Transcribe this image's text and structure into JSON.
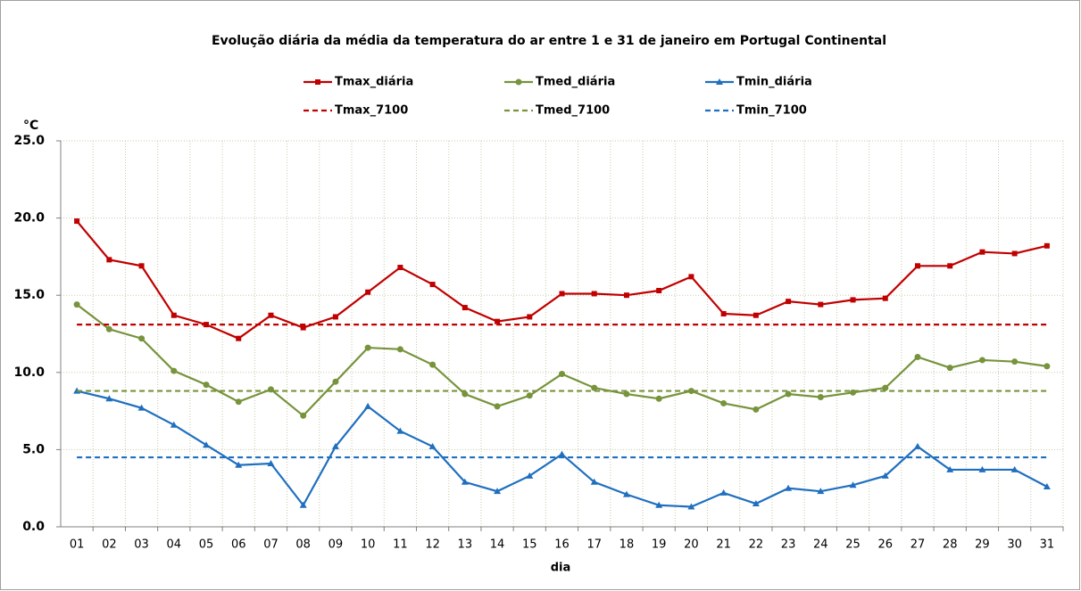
{
  "chart_data": {
    "type": "line",
    "title": "Evolução diária da média da temperatura do ar entre 1 e 31 de janeiro em Portugal Continental",
    "ylabel": "°C",
    "xlabel": "dia",
    "categories": [
      "01",
      "02",
      "03",
      "04",
      "05",
      "06",
      "07",
      "08",
      "09",
      "10",
      "11",
      "12",
      "13",
      "14",
      "15",
      "16",
      "17",
      "18",
      "19",
      "20",
      "21",
      "22",
      "23",
      "24",
      "25",
      "26",
      "27",
      "28",
      "29",
      "30",
      "31"
    ],
    "series": [
      {
        "name": "Tmax_diária",
        "color": "#c00000",
        "marker": "square",
        "dashed": false,
        "values": [
          19.8,
          17.3,
          16.9,
          13.7,
          13.1,
          12.2,
          13.7,
          12.9,
          13.6,
          15.2,
          16.8,
          15.7,
          14.2,
          13.3,
          13.6,
          15.1,
          15.1,
          15.0,
          15.3,
          16.2,
          13.8,
          13.7,
          14.6,
          14.4,
          14.7,
          14.8,
          16.9,
          16.9,
          17.8,
          17.7,
          18.2
        ]
      },
      {
        "name": "Tmed_diária",
        "color": "#77933c",
        "marker": "circle",
        "dashed": false,
        "values": [
          14.4,
          12.8,
          12.2,
          10.1,
          9.2,
          8.1,
          8.9,
          7.2,
          9.4,
          11.6,
          11.5,
          10.5,
          8.6,
          7.8,
          8.5,
          9.9,
          9.0,
          8.6,
          8.3,
          8.8,
          8.0,
          7.6,
          8.6,
          8.4,
          8.7,
          9.0,
          11.0,
          10.3,
          10.8,
          10.7,
          10.4
        ]
      },
      {
        "name": "Tmin_diária",
        "color": "#1f6fbf",
        "marker": "triangle",
        "dashed": false,
        "values": [
          8.8,
          8.3,
          7.7,
          6.6,
          5.3,
          4.0,
          4.1,
          1.4,
          5.2,
          7.8,
          6.2,
          5.2,
          2.9,
          2.3,
          3.3,
          4.7,
          2.9,
          2.1,
          1.4,
          1.3,
          2.2,
          1.5,
          2.5,
          2.3,
          2.7,
          3.3,
          5.2,
          3.7,
          3.7,
          3.7,
          2.6
        ]
      },
      {
        "name": "Tmax_7100",
        "color": "#c00000",
        "marker": "none",
        "dashed": true,
        "values": [
          13.1,
          13.1,
          13.1,
          13.1,
          13.1,
          13.1,
          13.1,
          13.1,
          13.1,
          13.1,
          13.1,
          13.1,
          13.1,
          13.1,
          13.1,
          13.1,
          13.1,
          13.1,
          13.1,
          13.1,
          13.1,
          13.1,
          13.1,
          13.1,
          13.1,
          13.1,
          13.1,
          13.1,
          13.1,
          13.1,
          13.1
        ]
      },
      {
        "name": "Tmed_7100",
        "color": "#77933c",
        "marker": "none",
        "dashed": true,
        "values": [
          8.8,
          8.8,
          8.8,
          8.8,
          8.8,
          8.8,
          8.8,
          8.8,
          8.8,
          8.8,
          8.8,
          8.8,
          8.8,
          8.8,
          8.8,
          8.8,
          8.8,
          8.8,
          8.8,
          8.8,
          8.8,
          8.8,
          8.8,
          8.8,
          8.8,
          8.8,
          8.8,
          8.8,
          8.8,
          8.8,
          8.8
        ]
      },
      {
        "name": "Tmin_7100",
        "color": "#1f6fbf",
        "marker": "none",
        "dashed": true,
        "values": [
          4.5,
          4.5,
          4.5,
          4.5,
          4.5,
          4.5,
          4.5,
          4.5,
          4.5,
          4.5,
          4.5,
          4.5,
          4.5,
          4.5,
          4.5,
          4.5,
          4.5,
          4.5,
          4.5,
          4.5,
          4.5,
          4.5,
          4.5,
          4.5,
          4.5,
          4.5,
          4.5,
          4.5,
          4.5,
          4.5,
          4.5
        ]
      }
    ],
    "ylim": [
      0,
      25
    ],
    "yticks": [
      {
        "value": 0,
        "label": "0.0"
      },
      {
        "value": 5,
        "label": "5.0"
      },
      {
        "value": 10,
        "label": "10.0"
      },
      {
        "value": 15,
        "label": "15.0"
      },
      {
        "value": 20,
        "label": "20.0"
      },
      {
        "value": 25,
        "label": "25.0"
      }
    ],
    "grid": true
  }
}
